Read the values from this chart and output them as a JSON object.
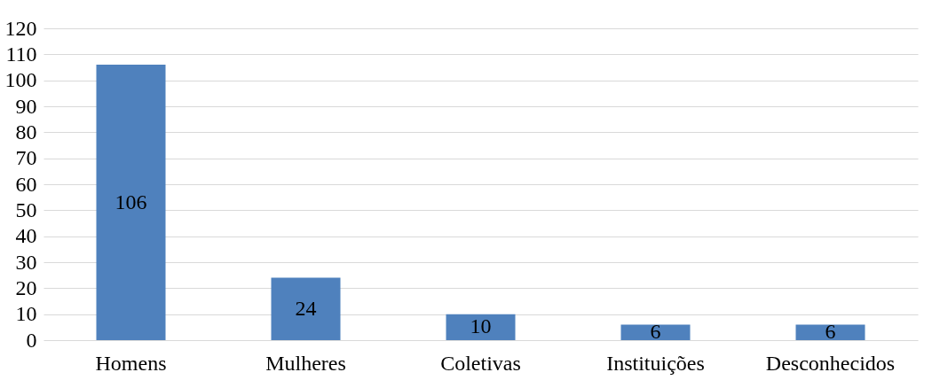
{
  "chart_data": {
    "type": "bar",
    "categories": [
      "Homens",
      "Mulheres",
      "Coletivas",
      "Instituições",
      "Desconhecidos"
    ],
    "values": [
      106,
      24,
      10,
      6,
      6
    ],
    "color": "#4f81bd",
    "ylim": [
      0,
      120
    ],
    "yticks": [
      0,
      10,
      20,
      30,
      40,
      50,
      60,
      70,
      80,
      90,
      100,
      110,
      120
    ],
    "grid": "y",
    "data_labels": true
  }
}
